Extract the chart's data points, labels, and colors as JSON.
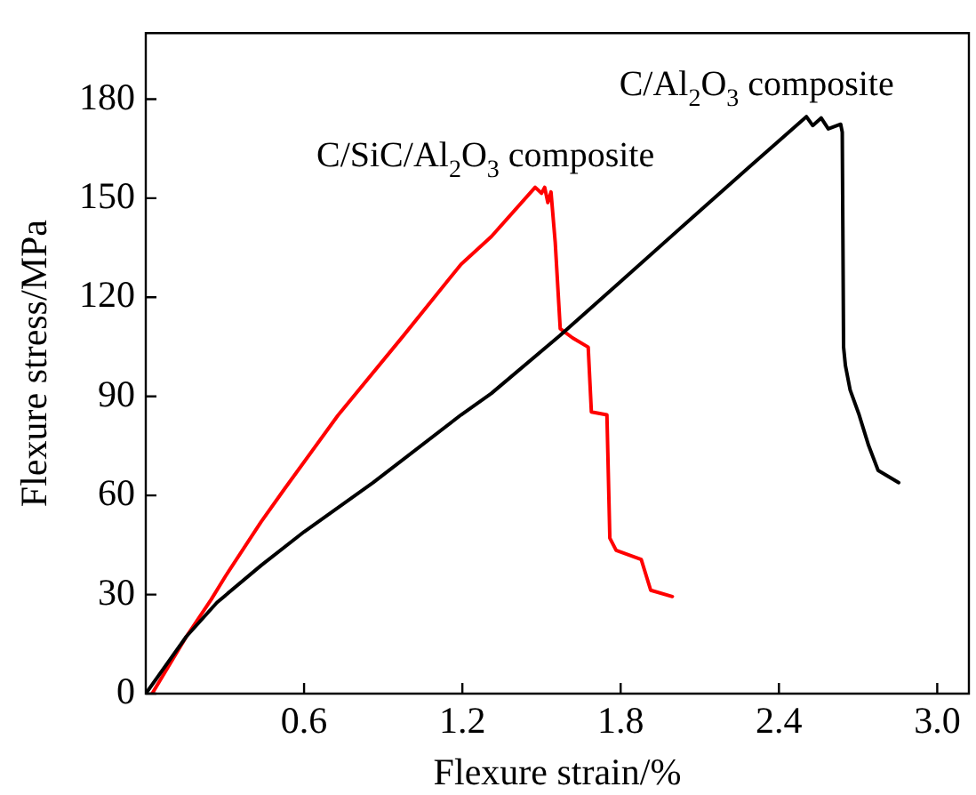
{
  "chart_data": {
    "type": "line",
    "xlabel": "Flexure strain/%",
    "ylabel": "Flexure stress/MPa",
    "xlim": [
      0,
      3.12
    ],
    "xticks": [
      0.6,
      1.2,
      1.8,
      2.4,
      {
        "value": 3,
        "label": "3.0"
      }
    ],
    "ylim": [
      0,
      200
    ],
    "yticks": [
      0,
      30,
      60,
      90,
      120,
      150,
      180
    ],
    "grid": false,
    "legend": false,
    "marker": "none",
    "line_style": "solid",
    "series": [
      {
        "name": "C/Al$_{2}$O$_{3}$ composite",
        "color": "#000000",
        "x": [
          0,
          0.154,
          0.27,
          0.437,
          0.6,
          0.862,
          1.195,
          1.31,
          1.571,
          1.807,
          2.043,
          2.28,
          2.504,
          2.528,
          2.56,
          2.587,
          2.634,
          2.64,
          2.645,
          2.652,
          2.67,
          2.704,
          2.74,
          2.776,
          2.854
        ],
        "values": [
          0,
          17.3,
          27.6,
          38.8,
          49,
          63.9,
          84.4,
          90.9,
          108.5,
          125.3,
          142.1,
          158.9,
          174.7,
          172,
          174.3,
          171,
          172.4,
          170,
          104.9,
          99.3,
          91.9,
          84.4,
          75.1,
          67.6,
          63.9
        ]
      },
      {
        "name": "C/SiC/Al$_{2}$O$_{3}$ composite",
        "color": "#ff0000",
        "x": [
          0.024,
          0.154,
          0.248,
          0.301,
          0.437,
          0.526,
          0.728,
          0.975,
          1.195,
          1.31,
          1.476,
          1.5,
          1.512,
          1.524,
          1.536,
          1.552,
          1.571,
          1.618,
          1.677,
          1.689,
          1.748,
          1.759,
          1.783,
          1.878,
          1.914,
          1.996
        ],
        "values": [
          0,
          17.3,
          28.5,
          35.4,
          52,
          62,
          84.2,
          108.2,
          130,
          138.4,
          153.3,
          151.5,
          153.3,
          148.7,
          151.9,
          136.6,
          110.5,
          107.7,
          104.9,
          85.3,
          84.4,
          47.1,
          43.4,
          40.6,
          31.3,
          29.4
        ]
      }
    ]
  }
}
